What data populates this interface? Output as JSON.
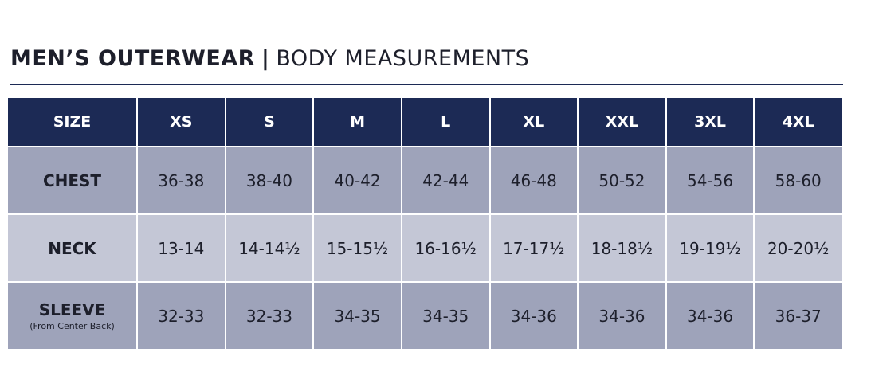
{
  "header": {
    "title": "MEN’S OUTERWEAR",
    "separator": "|",
    "subtitle": "BODY MEASUREMENTS"
  },
  "table": {
    "columns": [
      "SIZE",
      "XS",
      "S",
      "M",
      "L",
      "XL",
      "XXL",
      "3XL",
      "4XL"
    ],
    "rows": [
      {
        "label": "CHEST",
        "cells": [
          "36-38",
          "38-40",
          "40-42",
          "42-44",
          "46-48",
          "50-52",
          "54-56",
          "58-60"
        ]
      },
      {
        "label": "NECK",
        "cells": [
          "13-14",
          "14-14½",
          "15-15½",
          "16-16½",
          "17-17½",
          "18-18½",
          "19-19½",
          "20-20½"
        ]
      },
      {
        "label": "SLEEVE",
        "note": "(From Center Back)",
        "cells": [
          "32-33",
          "32-33",
          "34-35",
          "34-35",
          "34-36",
          "34-36",
          "34-36",
          "36-37"
        ]
      }
    ]
  }
}
